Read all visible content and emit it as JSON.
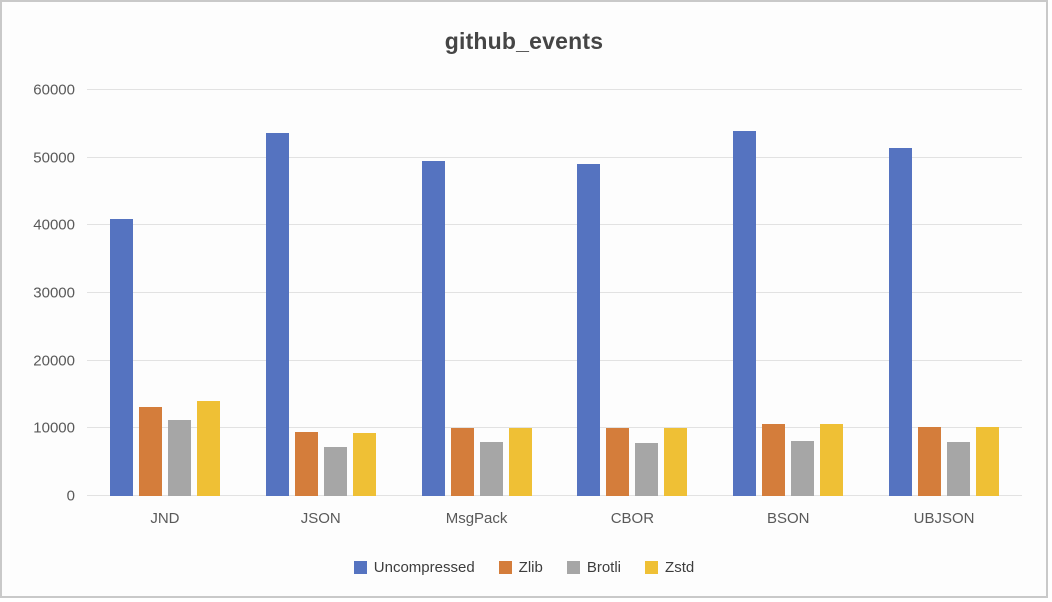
{
  "chart_data": {
    "type": "bar",
    "title": "github_events",
    "categories": [
      "JND",
      "JSON",
      "MsgPack",
      "CBOR",
      "BSON",
      "UBJSON"
    ],
    "series": [
      {
        "name": "Uncompressed",
        "color": "#5573C0",
        "values": [
          41000,
          53600,
          49500,
          49000,
          53900,
          51400
        ]
      },
      {
        "name": "Zlib",
        "color": "#D47D3B",
        "values": [
          13200,
          9500,
          10100,
          10100,
          10700,
          10200
        ]
      },
      {
        "name": "Brotli",
        "color": "#A6A6A6",
        "values": [
          11300,
          7300,
          8000,
          7900,
          8200,
          8000
        ]
      },
      {
        "name": "Zstd",
        "color": "#EFC035",
        "values": [
          14100,
          9300,
          10100,
          10100,
          10700,
          10200
        ]
      }
    ],
    "ylim": [
      0,
      60000
    ],
    "yticks": [
      0,
      10000,
      20000,
      30000,
      40000,
      50000,
      60000
    ],
    "xlabel": "",
    "ylabel": "",
    "grid": true,
    "legend_position": "bottom"
  },
  "colors": {
    "background": "#fdfdfd",
    "border": "#c9c9c9",
    "gridline": "#e2e2e2",
    "title_text": "#454545",
    "axis_text": "#595959"
  }
}
